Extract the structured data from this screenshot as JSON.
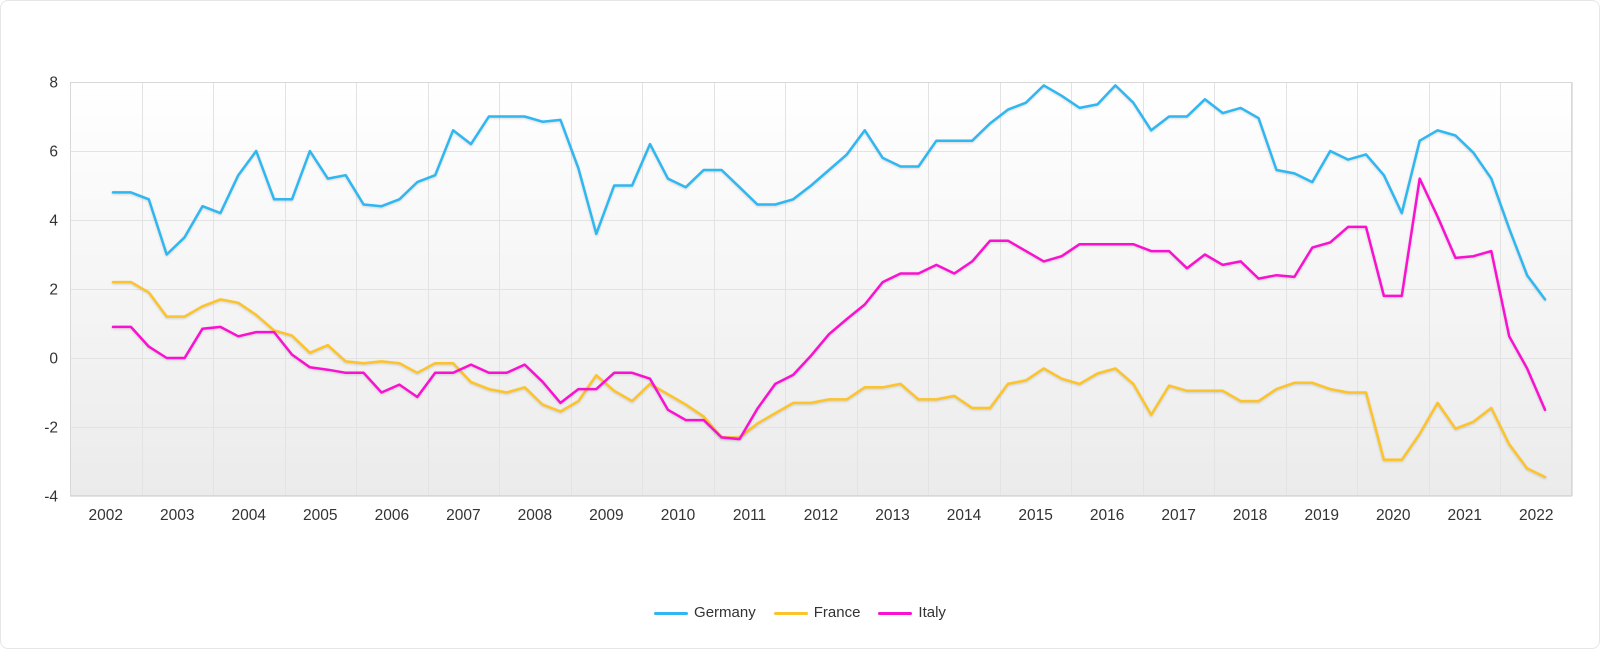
{
  "chart_data": {
    "type": "line",
    "line_style": "quarterly-step",
    "x_start": 2002.5,
    "x_step": 0.25,
    "x_tick_labels": [
      "2002",
      "2003",
      "2004",
      "2005",
      "2006",
      "2007",
      "2008",
      "2009",
      "2010",
      "2011",
      "2012",
      "2013",
      "2014",
      "2015",
      "2016",
      "2017",
      "2018",
      "2019",
      "2020",
      "2021",
      "2022"
    ],
    "y_ticks": [
      8,
      6,
      4,
      2,
      0,
      -2,
      -4
    ],
    "y_tick_labels": [
      "8",
      "6",
      "4",
      "2",
      "0",
      "-2",
      "-4"
    ],
    "ylim": [
      -4,
      8
    ],
    "grid": true,
    "legend_position": "bottom-center",
    "colors": {
      "axis_text": "#333333",
      "gridline": "#e3e3e3",
      "plot_border": "#d8d8d8",
      "bg_top": "#ffffff",
      "bg_bottom": "#ebebeb"
    },
    "series": [
      {
        "name": "Germany",
        "color": "#2eb7f1",
        "values": [
          4.8,
          4.8,
          4.6,
          3.0,
          3.5,
          4.4,
          4.2,
          5.3,
          6.0,
          4.6,
          4.6,
          6.0,
          5.2,
          5.3,
          4.45,
          4.4,
          4.6,
          5.1,
          5.3,
          6.6,
          6.2,
          7.0,
          7.0,
          7.0,
          6.85,
          6.9,
          5.5,
          3.6,
          5.0,
          5.0,
          6.2,
          5.2,
          4.95,
          5.45,
          5.45,
          4.95,
          4.45,
          4.45,
          4.6,
          5.0,
          5.45,
          5.9,
          6.6,
          5.8,
          5.55,
          5.55,
          6.3,
          6.3,
          6.3,
          6.8,
          7.2,
          7.4,
          7.9,
          7.6,
          7.25,
          7.35,
          7.9,
          7.4,
          6.6,
          7.0,
          7.0,
          7.5,
          7.1,
          7.25,
          6.95,
          5.45,
          5.35,
          5.1,
          6.0,
          5.75,
          5.9,
          5.3,
          4.2,
          6.3,
          6.6,
          6.45,
          5.95,
          5.2,
          3.75,
          2.4,
          1.7
        ]
      },
      {
        "name": "France",
        "color": "#fcc32b",
        "values": [
          2.2,
          2.2,
          1.9,
          1.2,
          1.2,
          1.5,
          1.7,
          1.6,
          1.25,
          0.8,
          0.65,
          0.15,
          0.37,
          -0.1,
          -0.15,
          -0.1,
          -0.15,
          -0.43,
          -0.15,
          -0.15,
          -0.7,
          -0.9,
          -1.0,
          -0.85,
          -1.35,
          -1.55,
          -1.25,
          -0.5,
          -0.95,
          -1.25,
          -0.75,
          -1.05,
          -1.35,
          -1.7,
          -2.3,
          -2.3,
          -1.9,
          -1.6,
          -1.3,
          -1.3,
          -1.2,
          -1.2,
          -0.85,
          -0.85,
          -0.75,
          -1.2,
          -1.2,
          -1.1,
          -1.45,
          -1.45,
          -0.75,
          -0.65,
          -0.3,
          -0.6,
          -0.75,
          -0.45,
          -0.3,
          -0.75,
          -1.65,
          -0.8,
          -0.95,
          -0.95,
          -0.95,
          -1.25,
          -1.25,
          -0.9,
          -0.72,
          -0.72,
          -0.9,
          -1.0,
          -1.0,
          -2.95,
          -2.95,
          -2.2,
          -1.3,
          -2.05,
          -1.85,
          -1.45,
          -2.5,
          -3.2,
          -3.45
        ]
      },
      {
        "name": "Italy",
        "color": "#fa10d0",
        "values": [
          0.9,
          0.9,
          0.33,
          0.0,
          0.0,
          0.85,
          0.9,
          0.63,
          0.75,
          0.75,
          0.1,
          -0.27,
          -0.34,
          -0.43,
          -0.43,
          -1.0,
          -0.77,
          -1.13,
          -0.43,
          -0.43,
          -0.19,
          -0.43,
          -0.43,
          -0.19,
          -0.69,
          -1.3,
          -0.9,
          -0.9,
          -0.43,
          -0.43,
          -0.6,
          -1.5,
          -1.8,
          -1.8,
          -2.3,
          -2.35,
          -1.47,
          -0.75,
          -0.49,
          0.07,
          0.69,
          1.13,
          1.55,
          2.2,
          2.45,
          2.45,
          2.7,
          2.45,
          2.8,
          3.4,
          3.4,
          3.1,
          2.8,
          2.95,
          3.3,
          3.3,
          3.3,
          3.3,
          3.1,
          3.1,
          2.6,
          3.0,
          2.7,
          2.8,
          2.3,
          2.4,
          2.35,
          3.2,
          3.35,
          3.8,
          3.8,
          1.8,
          1.8,
          5.2,
          4.1,
          2.9,
          2.95,
          3.1,
          0.63,
          -0.3,
          -1.5
        ]
      }
    ]
  }
}
